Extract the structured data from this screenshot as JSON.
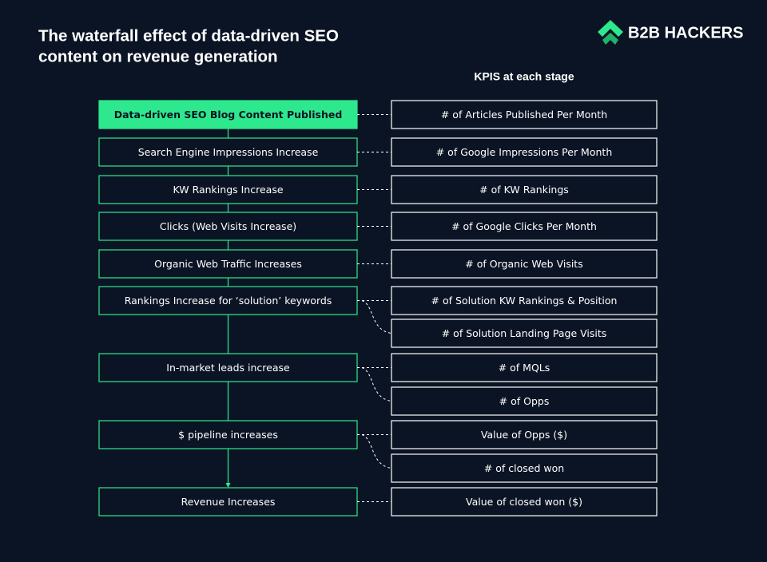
{
  "header": {
    "title_lines": [
      "The waterfall effect of data-driven SEO",
      "content on revenue generation"
    ],
    "brand": "B2B HACKERS"
  },
  "kpi_heading": "KPIS at each stage",
  "stages": [
    {
      "label": "Data-driven SEO Blog Content Published",
      "kpis": [
        "# of Articles Published Per Month"
      ]
    },
    {
      "label": "Search Engine Impressions Increase",
      "kpis": [
        "# of Google Impressions Per Month"
      ]
    },
    {
      "label": "KW Rankings Increase",
      "kpis": [
        "# of KW Rankings"
      ]
    },
    {
      "label": "Clicks (Web Visits Increase)",
      "kpis": [
        "# of Google Clicks Per Month"
      ]
    },
    {
      "label": "Organic Web Traffic Increases",
      "kpis": [
        "# of Organic Web Visits"
      ]
    },
    {
      "label": "Rankings Increase for ‘solution’ keywords",
      "kpis": [
        "# of Solution KW Rankings & Position",
        "# of Solution Landing Page Visits"
      ]
    },
    {
      "label": "In-market leads increase",
      "kpis": [
        "# of MQLs",
        "# of Opps"
      ]
    },
    {
      "label": "$ pipeline increases",
      "kpis": [
        "Value of Opps ($)",
        "# of closed won"
      ]
    },
    {
      "label": "Revenue Increases",
      "kpis": [
        "Value of closed won ($)"
      ]
    }
  ]
}
